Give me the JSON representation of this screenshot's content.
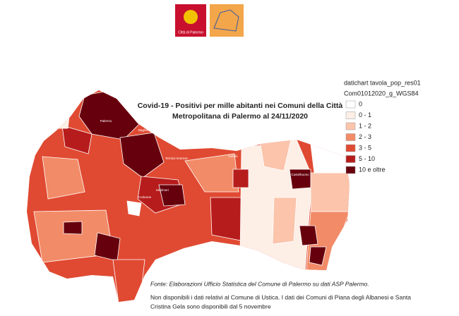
{
  "header": {
    "logo_text": "Città di Palermo"
  },
  "map": {
    "title_lines": [
      "Covid-19 - Positivi per mille abitanti nei Comuni della Città",
      "Metropolitana di Palermo al 24/11/2020"
    ],
    "legend": {
      "header_lines": [
        "datichart tavola_pop_res01",
        "Com01012020_g_WGS84"
      ],
      "classes": [
        {
          "label": "0",
          "color": "#ffffff"
        },
        {
          "label": "0 - 1",
          "color": "#fdeee6"
        },
        {
          "label": "1 - 2",
          "color": "#fbc4ab"
        },
        {
          "label": "2 - 3",
          "color": "#f28b67"
        },
        {
          "label": "3 - 5",
          "color": "#e04a32"
        },
        {
          "label": "5 - 10",
          "color": "#b71c1c"
        },
        {
          "label": "10 e oltre",
          "color": "#67000d"
        }
      ]
    },
    "municipalities": [
      "Isola delle Femmine",
      "Palermo",
      "Bagheria",
      "Misilmeri",
      "Cefalù",
      "Castelbuono",
      "Corleone",
      "Termini Imerese"
    ]
  },
  "footer": {
    "source": "Fonte: Elaborazioni Ufficio Statistica del Comune di Palermo su dati ASP Palermo.",
    "notes": [
      "Non disponibili i dati relativi al Comune di Ustica. I dati dei Comuni di Piana degli Albanesi e Santa",
      "Cristina Gela sono disponibili dal 5 novembre"
    ]
  }
}
